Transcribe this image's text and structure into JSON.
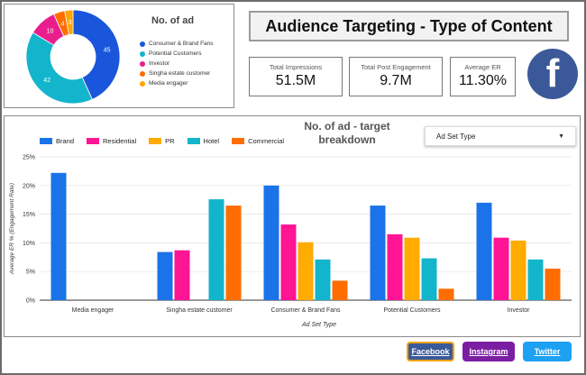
{
  "donut": {
    "title": "No. of ad",
    "segments": [
      {
        "label": "Consumer & Brand Fans",
        "value": 45,
        "value_label": "45",
        "color": "#1a56db"
      },
      {
        "label": "Potential Customers",
        "value": 42,
        "value_label": "42",
        "color": "#12b5cb"
      },
      {
        "label": "Investor",
        "value": 10,
        "value_label": "10",
        "color": "#e91e8c"
      },
      {
        "label": "Singha estate customer",
        "value": 4,
        "value_label": "4",
        "color": "#ff6d00"
      },
      {
        "label": "Media engager",
        "value": 3,
        "value_label": "3",
        "color": "#ffa400"
      }
    ]
  },
  "header": {
    "title": "Audience Targeting - Type of Content"
  },
  "kpis": [
    {
      "label": "Total Impressions",
      "value": "51.5M"
    },
    {
      "label": "Total Post Engagement",
      "value": "9.7M"
    },
    {
      "label": "Average ER",
      "value": "11.30%"
    }
  ],
  "logo": {
    "glyph": "f",
    "icon": "facebook-logo-icon",
    "color": "#3b5998"
  },
  "dropdown": {
    "label": "Ad Set Type",
    "caret": "▼"
  },
  "chart_data": {
    "type": "bar",
    "title": "No. of ad - target breakdown",
    "title_lines": [
      "No. of ad - target",
      "breakdown"
    ],
    "xlabel": "Ad Set Type",
    "ylabel": "Average ER % (Engagement Rate)",
    "ylim": [
      0,
      25
    ],
    "yticks": [
      0,
      5,
      10,
      15,
      20,
      25
    ],
    "ytick_labels": [
      "0%",
      "5%",
      "10%",
      "15%",
      "20%",
      "25%"
    ],
    "categories": [
      "Media engager",
      "Singha estate customer",
      "Consumer & Brand Fans",
      "Potential Customers",
      "Investor"
    ],
    "series": [
      {
        "name": "Brand",
        "color": "#1a73e8",
        "values": [
          22.2,
          8.4,
          20.0,
          16.5,
          17.0
        ]
      },
      {
        "name": "Residential",
        "color": "#ff1493",
        "values": [
          null,
          8.7,
          13.2,
          11.5,
          10.9
        ]
      },
      {
        "name": "PR",
        "color": "#ffab00",
        "values": [
          null,
          null,
          10.1,
          10.9,
          10.4
        ]
      },
      {
        "name": "Hotel",
        "color": "#12b5cb",
        "values": [
          null,
          17.6,
          7.1,
          7.3,
          7.1
        ]
      },
      {
        "name": "Commercial",
        "color": "#ff6d00",
        "values": [
          null,
          16.5,
          3.4,
          2.0,
          5.5
        ]
      }
    ],
    "grid": true,
    "legend": "top-left"
  },
  "buttons": {
    "facebook": "Facebook",
    "instagram": "Instagram",
    "twitter": "Twitter"
  }
}
